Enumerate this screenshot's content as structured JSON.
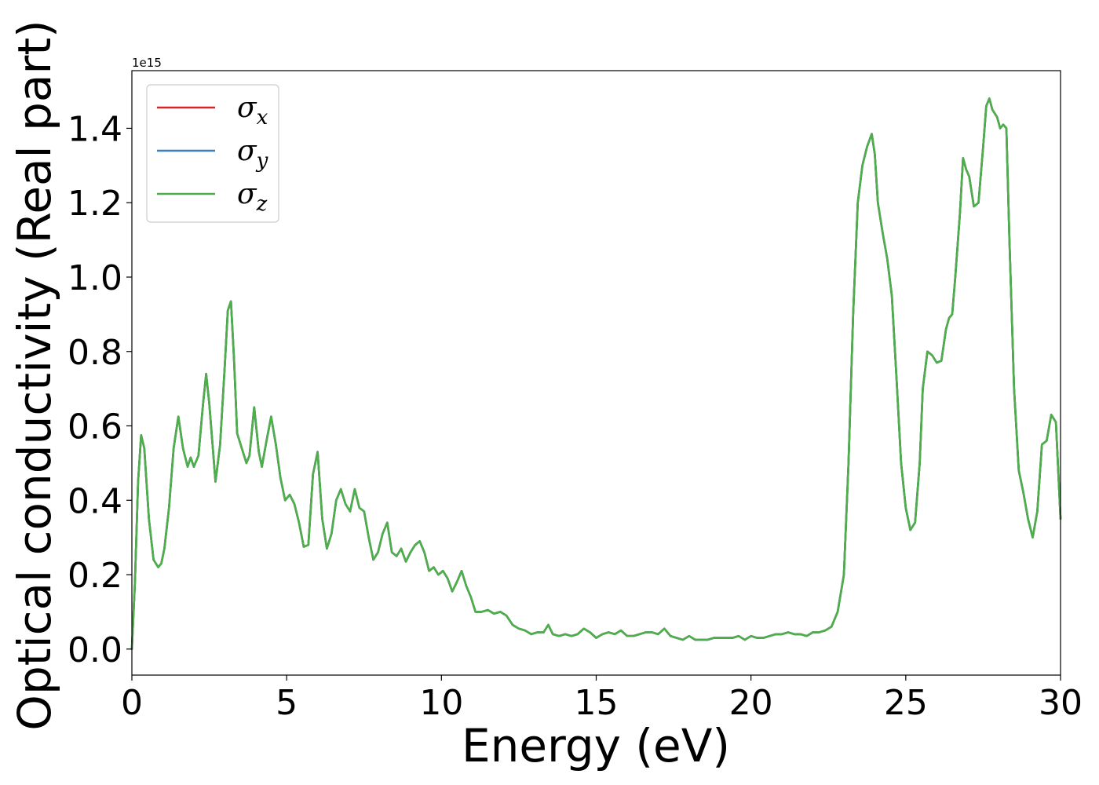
{
  "chart_data": {
    "type": "line",
    "xlabel": "Energy (eV)",
    "ylabel": "Optical conductivity (Real part)",
    "y_offset_label": "1e15",
    "xlim": [
      0,
      30
    ],
    "ylim": [
      -0.07,
      1.555
    ],
    "xticks": [
      0,
      5,
      10,
      15,
      20,
      25,
      30
    ],
    "xtick_labels": [
      "0",
      "5",
      "10",
      "15",
      "20",
      "25",
      "30"
    ],
    "yticks": [
      0.0,
      0.2,
      0.4,
      0.6,
      0.8,
      1.0,
      1.2,
      1.4
    ],
    "ytick_labels": [
      "0.0",
      "0.2",
      "0.4",
      "0.6",
      "0.8",
      "1.0",
      "1.2",
      "1.4"
    ],
    "grid": false,
    "legend_position": "top-left",
    "x": [
      0.0,
      0.1,
      0.2,
      0.3,
      0.4,
      0.55,
      0.7,
      0.85,
      0.95,
      1.05,
      1.2,
      1.35,
      1.5,
      1.65,
      1.8,
      1.9,
      2.0,
      2.15,
      2.3,
      2.4,
      2.5,
      2.7,
      2.85,
      3.0,
      3.1,
      3.2,
      3.3,
      3.4,
      3.55,
      3.7,
      3.8,
      3.95,
      4.1,
      4.2,
      4.35,
      4.5,
      4.65,
      4.8,
      4.95,
      5.1,
      5.25,
      5.4,
      5.55,
      5.7,
      5.85,
      6.0,
      6.15,
      6.3,
      6.45,
      6.6,
      6.75,
      6.9,
      7.05,
      7.2,
      7.35,
      7.5,
      7.65,
      7.8,
      7.95,
      8.1,
      8.25,
      8.4,
      8.55,
      8.7,
      8.85,
      9.0,
      9.15,
      9.3,
      9.45,
      9.6,
      9.75,
      9.9,
      10.05,
      10.2,
      10.35,
      10.5,
      10.65,
      10.8,
      10.95,
      11.1,
      11.3,
      11.5,
      11.7,
      11.9,
      12.1,
      12.3,
      12.5,
      12.7,
      12.9,
      13.1,
      13.3,
      13.45,
      13.6,
      13.8,
      14.0,
      14.2,
      14.4,
      14.6,
      14.8,
      15.0,
      15.2,
      15.4,
      15.6,
      15.8,
      16.0,
      16.2,
      16.4,
      16.6,
      16.8,
      17.0,
      17.2,
      17.4,
      17.6,
      17.8,
      18.0,
      18.2,
      18.4,
      18.6,
      18.8,
      19.0,
      19.2,
      19.4,
      19.6,
      19.8,
      20.0,
      20.2,
      20.4,
      20.6,
      20.8,
      21.0,
      21.2,
      21.4,
      21.6,
      21.8,
      22.0,
      22.2,
      22.4,
      22.6,
      22.8,
      23.0,
      23.15,
      23.3,
      23.45,
      23.6,
      23.75,
      23.9,
      24.0,
      24.1,
      24.25,
      24.4,
      24.55,
      24.7,
      24.85,
      25.0,
      25.15,
      25.3,
      25.45,
      25.55,
      25.7,
      25.85,
      26.0,
      26.15,
      26.3,
      26.4,
      26.5,
      26.6,
      26.75,
      26.85,
      26.95,
      27.05,
      27.2,
      27.35,
      27.5,
      27.6,
      27.7,
      27.8,
      27.95,
      28.05,
      28.15,
      28.25,
      28.35,
      28.5,
      28.65,
      28.8,
      28.95,
      29.1,
      29.25,
      29.4,
      29.55,
      29.7,
      29.85,
      30.0
    ],
    "series": [
      {
        "name": "σx",
        "label_base": "σ",
        "label_sub": "x",
        "color": "#d62728",
        "y": [
          0.0,
          0.18,
          0.45,
          0.575,
          0.54,
          0.35,
          0.24,
          0.22,
          0.23,
          0.27,
          0.38,
          0.54,
          0.625,
          0.54,
          0.49,
          0.515,
          0.49,
          0.52,
          0.66,
          0.74,
          0.66,
          0.45,
          0.55,
          0.76,
          0.91,
          0.935,
          0.78,
          0.58,
          0.54,
          0.5,
          0.52,
          0.65,
          0.53,
          0.49,
          0.56,
          0.625,
          0.55,
          0.46,
          0.4,
          0.415,
          0.39,
          0.34,
          0.275,
          0.28,
          0.47,
          0.53,
          0.35,
          0.27,
          0.31,
          0.4,
          0.43,
          0.39,
          0.37,
          0.43,
          0.38,
          0.37,
          0.3,
          0.24,
          0.26,
          0.31,
          0.34,
          0.26,
          0.25,
          0.27,
          0.235,
          0.26,
          0.28,
          0.29,
          0.26,
          0.21,
          0.22,
          0.2,
          0.21,
          0.19,
          0.155,
          0.18,
          0.21,
          0.17,
          0.14,
          0.1,
          0.1,
          0.105,
          0.095,
          0.1,
          0.09,
          0.065,
          0.055,
          0.05,
          0.04,
          0.045,
          0.045,
          0.065,
          0.04,
          0.035,
          0.04,
          0.035,
          0.04,
          0.055,
          0.045,
          0.03,
          0.04,
          0.045,
          0.04,
          0.05,
          0.035,
          0.035,
          0.04,
          0.045,
          0.045,
          0.04,
          0.055,
          0.035,
          0.03,
          0.025,
          0.035,
          0.025,
          0.025,
          0.025,
          0.03,
          0.03,
          0.03,
          0.03,
          0.035,
          0.025,
          0.035,
          0.03,
          0.03,
          0.035,
          0.04,
          0.04,
          0.045,
          0.04,
          0.04,
          0.035,
          0.045,
          0.045,
          0.05,
          0.06,
          0.1,
          0.2,
          0.5,
          0.9,
          1.2,
          1.3,
          1.35,
          1.385,
          1.33,
          1.2,
          1.12,
          1.05,
          0.95,
          0.73,
          0.5,
          0.38,
          0.32,
          0.34,
          0.5,
          0.7,
          0.8,
          0.79,
          0.77,
          0.775,
          0.86,
          0.89,
          0.9,
          1.0,
          1.17,
          1.32,
          1.29,
          1.27,
          1.19,
          1.2,
          1.35,
          1.46,
          1.48,
          1.45,
          1.43,
          1.4,
          1.41,
          1.4,
          1.1,
          0.7,
          0.48,
          0.42,
          0.35,
          0.3,
          0.37,
          0.55,
          0.56,
          0.63,
          0.61,
          0.35
        ]
      },
      {
        "name": "σy",
        "label_base": "σ",
        "label_sub": "y",
        "color": "#3a7fbf",
        "y": [
          0.0,
          0.18,
          0.45,
          0.575,
          0.54,
          0.35,
          0.24,
          0.22,
          0.23,
          0.27,
          0.38,
          0.54,
          0.625,
          0.54,
          0.49,
          0.515,
          0.49,
          0.52,
          0.66,
          0.74,
          0.66,
          0.45,
          0.55,
          0.76,
          0.91,
          0.935,
          0.78,
          0.58,
          0.54,
          0.5,
          0.52,
          0.65,
          0.53,
          0.49,
          0.56,
          0.625,
          0.55,
          0.46,
          0.4,
          0.415,
          0.39,
          0.34,
          0.275,
          0.28,
          0.47,
          0.53,
          0.35,
          0.27,
          0.31,
          0.4,
          0.43,
          0.39,
          0.37,
          0.43,
          0.38,
          0.37,
          0.3,
          0.24,
          0.26,
          0.31,
          0.34,
          0.26,
          0.25,
          0.27,
          0.235,
          0.26,
          0.28,
          0.29,
          0.26,
          0.21,
          0.22,
          0.2,
          0.21,
          0.19,
          0.155,
          0.18,
          0.21,
          0.17,
          0.14,
          0.1,
          0.1,
          0.105,
          0.095,
          0.1,
          0.09,
          0.065,
          0.055,
          0.05,
          0.04,
          0.045,
          0.045,
          0.065,
          0.04,
          0.035,
          0.04,
          0.035,
          0.04,
          0.055,
          0.045,
          0.03,
          0.04,
          0.045,
          0.04,
          0.05,
          0.035,
          0.035,
          0.04,
          0.045,
          0.045,
          0.04,
          0.055,
          0.035,
          0.03,
          0.025,
          0.035,
          0.025,
          0.025,
          0.025,
          0.03,
          0.03,
          0.03,
          0.03,
          0.035,
          0.025,
          0.035,
          0.03,
          0.03,
          0.035,
          0.04,
          0.04,
          0.045,
          0.04,
          0.04,
          0.035,
          0.045,
          0.045,
          0.05,
          0.06,
          0.1,
          0.2,
          0.5,
          0.9,
          1.2,
          1.3,
          1.35,
          1.385,
          1.33,
          1.2,
          1.12,
          1.05,
          0.95,
          0.73,
          0.5,
          0.38,
          0.32,
          0.34,
          0.5,
          0.7,
          0.8,
          0.79,
          0.77,
          0.775,
          0.86,
          0.89,
          0.9,
          1.0,
          1.17,
          1.32,
          1.29,
          1.27,
          1.19,
          1.2,
          1.35,
          1.46,
          1.48,
          1.45,
          1.43,
          1.4,
          1.41,
          1.4,
          1.1,
          0.7,
          0.48,
          0.42,
          0.35,
          0.3,
          0.37,
          0.55,
          0.56,
          0.63,
          0.61,
          0.35
        ]
      },
      {
        "name": "σz",
        "label_base": "σ",
        "label_sub": "z",
        "color": "#4daf4a",
        "y": [
          0.0,
          0.18,
          0.45,
          0.575,
          0.54,
          0.35,
          0.24,
          0.22,
          0.23,
          0.27,
          0.38,
          0.54,
          0.625,
          0.54,
          0.49,
          0.515,
          0.49,
          0.52,
          0.66,
          0.74,
          0.66,
          0.45,
          0.55,
          0.76,
          0.91,
          0.935,
          0.78,
          0.58,
          0.54,
          0.5,
          0.52,
          0.65,
          0.53,
          0.49,
          0.56,
          0.625,
          0.55,
          0.46,
          0.4,
          0.415,
          0.39,
          0.34,
          0.275,
          0.28,
          0.47,
          0.53,
          0.35,
          0.27,
          0.31,
          0.4,
          0.43,
          0.39,
          0.37,
          0.43,
          0.38,
          0.37,
          0.3,
          0.24,
          0.26,
          0.31,
          0.34,
          0.26,
          0.25,
          0.27,
          0.235,
          0.26,
          0.28,
          0.29,
          0.26,
          0.21,
          0.22,
          0.2,
          0.21,
          0.19,
          0.155,
          0.18,
          0.21,
          0.17,
          0.14,
          0.1,
          0.1,
          0.105,
          0.095,
          0.1,
          0.09,
          0.065,
          0.055,
          0.05,
          0.04,
          0.045,
          0.045,
          0.065,
          0.04,
          0.035,
          0.04,
          0.035,
          0.04,
          0.055,
          0.045,
          0.03,
          0.04,
          0.045,
          0.04,
          0.05,
          0.035,
          0.035,
          0.04,
          0.045,
          0.045,
          0.04,
          0.055,
          0.035,
          0.03,
          0.025,
          0.035,
          0.025,
          0.025,
          0.025,
          0.03,
          0.03,
          0.03,
          0.03,
          0.035,
          0.025,
          0.035,
          0.03,
          0.03,
          0.035,
          0.04,
          0.04,
          0.045,
          0.04,
          0.04,
          0.035,
          0.045,
          0.045,
          0.05,
          0.06,
          0.1,
          0.2,
          0.5,
          0.9,
          1.2,
          1.3,
          1.35,
          1.385,
          1.33,
          1.2,
          1.12,
          1.05,
          0.95,
          0.73,
          0.5,
          0.38,
          0.32,
          0.34,
          0.5,
          0.7,
          0.8,
          0.79,
          0.77,
          0.775,
          0.86,
          0.89,
          0.9,
          1.0,
          1.17,
          1.32,
          1.29,
          1.27,
          1.19,
          1.2,
          1.35,
          1.46,
          1.48,
          1.45,
          1.43,
          1.4,
          1.41,
          1.4,
          1.1,
          0.7,
          0.48,
          0.42,
          0.35,
          0.3,
          0.37,
          0.55,
          0.56,
          0.63,
          0.61,
          0.35
        ]
      }
    ]
  }
}
